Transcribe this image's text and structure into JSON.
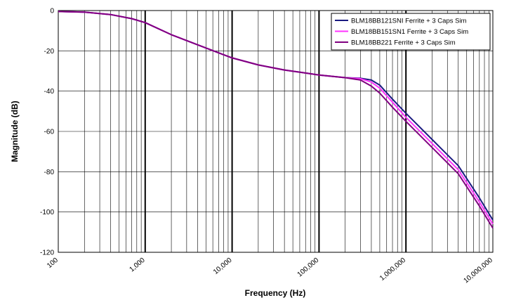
{
  "chart_data": {
    "type": "line",
    "title": "",
    "xlabel": "Frequency (Hz)",
    "ylabel": "Magnitude (dB)",
    "x_scale": "log",
    "xlim": [
      100,
      10000000
    ],
    "ylim": [
      -120,
      0
    ],
    "x_ticks": [
      100,
      1000,
      10000,
      100000,
      1000000,
      10000000
    ],
    "x_tick_labels": [
      "100",
      "1,000",
      "10,000",
      "100,000",
      "1,000,000",
      "10,000,000"
    ],
    "y_ticks": [
      0,
      -20,
      -40,
      -60,
      -80,
      -100,
      -120
    ],
    "y_tick_labels": [
      "0",
      "-20",
      "-40",
      "-60",
      "-80",
      "-100",
      "-120"
    ],
    "grid": true,
    "legend_position": "top-right",
    "series": [
      {
        "name": "BLM18BB121SNI Ferrite + 3 Caps Sim",
        "color": "#1a1a80",
        "x": [
          100,
          200,
          400,
          700,
          1000,
          2000,
          4000,
          7000,
          10000,
          20000,
          40000,
          70000,
          100000,
          200000,
          300000,
          400000,
          500000,
          700000,
          1000000,
          2000000,
          4000000,
          7000000,
          10000000
        ],
        "y": [
          -0.5,
          -0.8,
          -2,
          -4,
          -6,
          -12,
          -17,
          -21,
          -23.5,
          -27,
          -29.5,
          -31,
          -32,
          -33.3,
          -33.6,
          -34.5,
          -37,
          -44,
          -51,
          -64,
          -77,
          -93,
          -104
        ]
      },
      {
        "name": "BLM18BB151SN1 Ferrite + 3 Caps Sim",
        "color": "#ff33ff",
        "x": [
          100,
          200,
          400,
          700,
          1000,
          2000,
          4000,
          7000,
          10000,
          20000,
          40000,
          70000,
          100000,
          200000,
          300000,
          400000,
          500000,
          700000,
          1000000,
          2000000,
          4000000,
          7000000,
          10000000
        ],
        "y": [
          -0.5,
          -0.8,
          -2,
          -4,
          -6,
          -12,
          -17,
          -21,
          -23.5,
          -27,
          -29.5,
          -31,
          -32,
          -33.3,
          -33.8,
          -35.5,
          -38.5,
          -45.5,
          -53,
          -66,
          -79,
          -95,
          -106
        ]
      },
      {
        "name": "BLM18BB221 Ferrite + 3 Caps Sim",
        "color": "#800080",
        "x": [
          100,
          200,
          400,
          700,
          1000,
          2000,
          4000,
          7000,
          10000,
          20000,
          40000,
          70000,
          100000,
          200000,
          300000,
          400000,
          500000,
          700000,
          1000000,
          2000000,
          4000000,
          7000000,
          10000000
        ],
        "y": [
          -0.5,
          -0.8,
          -2,
          -4,
          -6,
          -12,
          -17,
          -21,
          -23.5,
          -27,
          -29.5,
          -31,
          -32,
          -33.3,
          -34.5,
          -37.5,
          -41,
          -48,
          -55,
          -68,
          -81,
          -97,
          -108
        ]
      }
    ]
  }
}
